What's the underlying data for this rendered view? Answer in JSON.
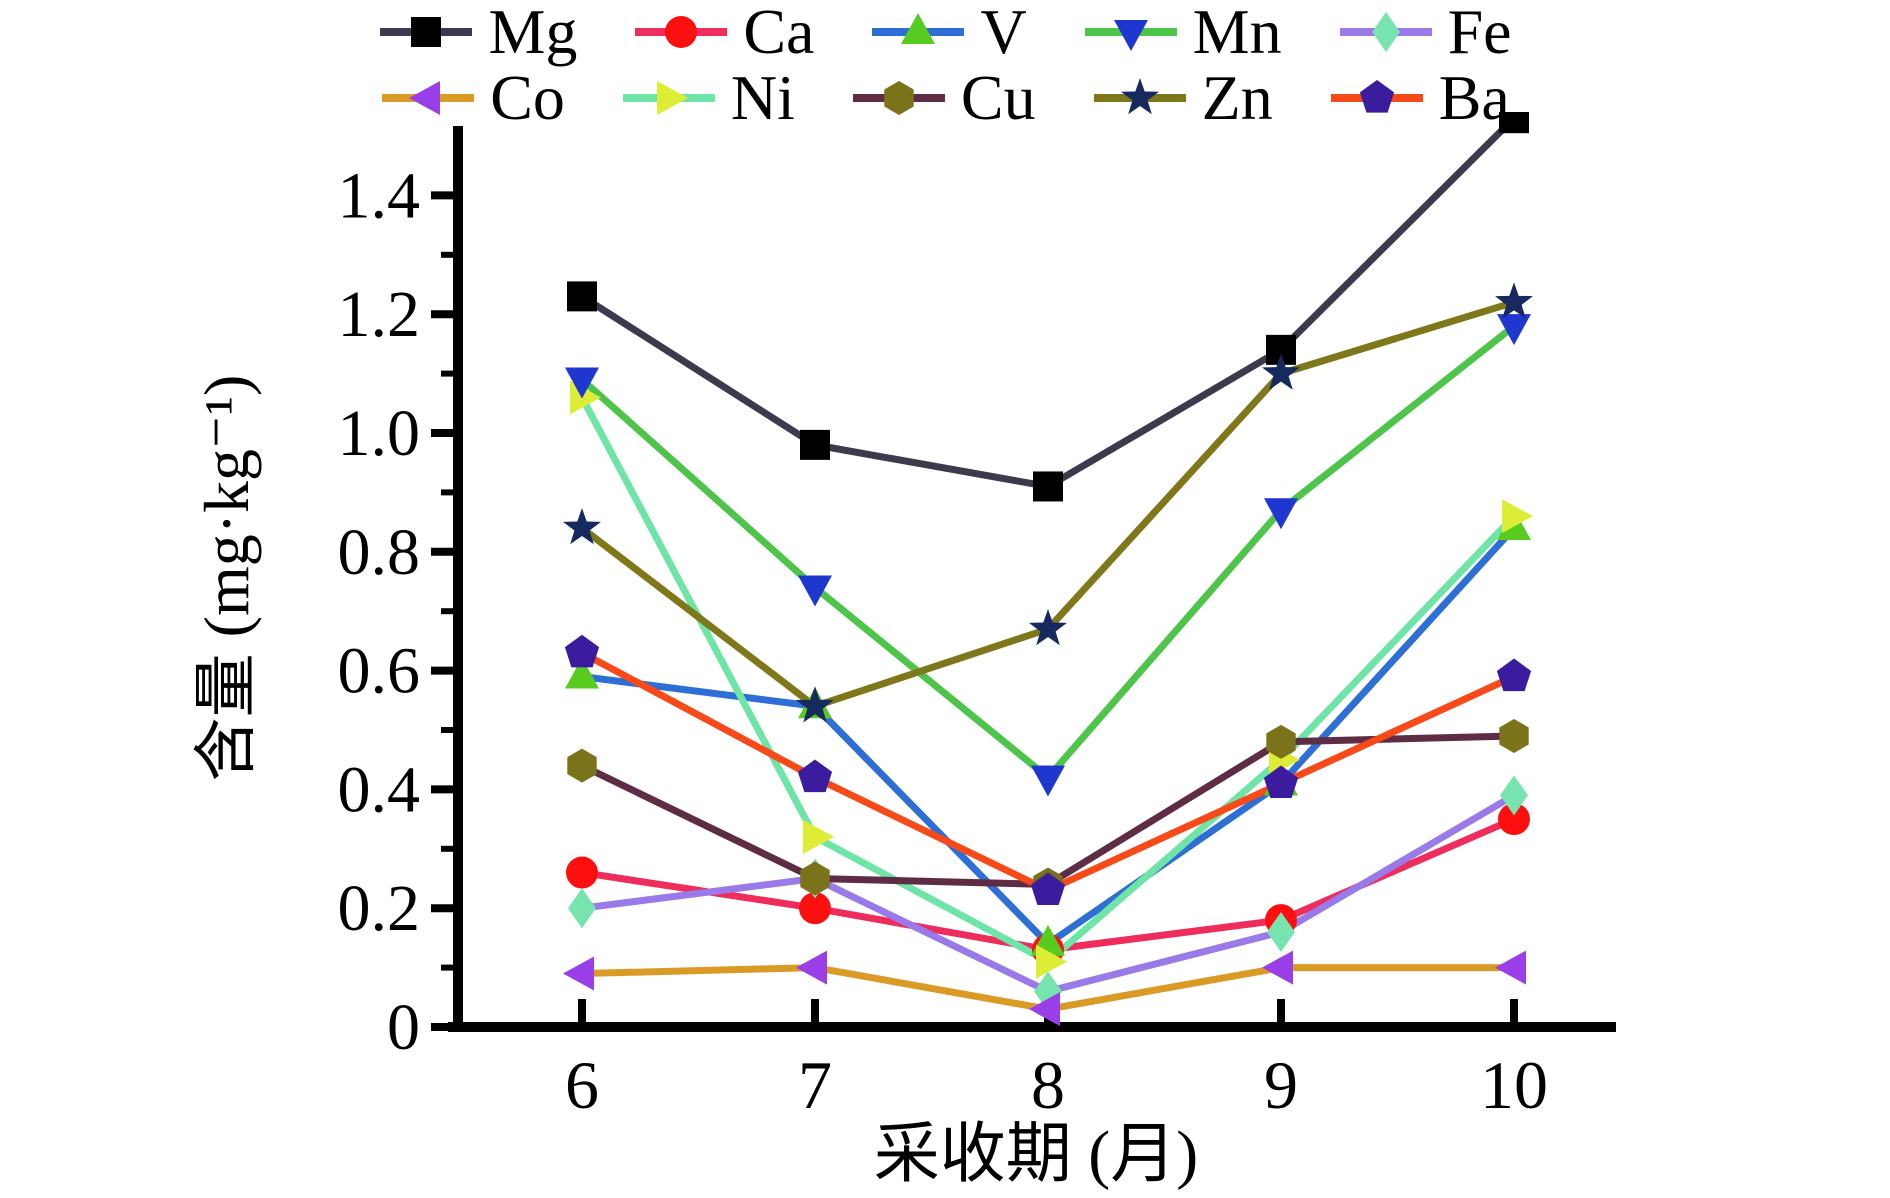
{
  "chart_data": {
    "type": "line",
    "x": [
      6,
      7,
      8,
      9,
      10
    ],
    "xlabel": "采收期 (月)",
    "ylabel": "含量 (mg·kg⁻¹)",
    "xlim": [
      5.5,
      10.45
    ],
    "ylim": [
      0,
      1.5
    ],
    "grid": false,
    "legend_position": "top-center-two-rows",
    "y_minor_tick_step": 0.1,
    "series": [
      {
        "name": "Mg",
        "line_color": "#3b3b4d",
        "marker": "square",
        "marker_color": "#000000",
        "values": [
          1.23,
          0.98,
          0.91,
          1.14,
          1.53
        ]
      },
      {
        "name": "Ca",
        "line_color": "#ee2d5d",
        "marker": "circle",
        "marker_color": "#fb0f0f",
        "values": [
          0.26,
          0.2,
          0.13,
          0.18,
          0.35
        ]
      },
      {
        "name": "V",
        "line_color": "#2e6fd6",
        "marker": "triangle-up",
        "marker_color": "#57cb20",
        "values": [
          0.59,
          0.54,
          0.14,
          0.41,
          0.84
        ]
      },
      {
        "name": "Mn",
        "line_color": "#4ec44a",
        "marker": "triangle-down",
        "marker_color": "#2037cf",
        "values": [
          1.09,
          0.74,
          0.42,
          0.87,
          1.18
        ]
      },
      {
        "name": "Fe",
        "line_color": "#9a7ae8",
        "marker": "diamond",
        "marker_color": "#77e3ae",
        "values": [
          0.2,
          0.25,
          0.06,
          0.16,
          0.39
        ]
      },
      {
        "name": "Co",
        "line_color": "#d99b26",
        "marker": "triangle-left",
        "marker_color": "#9a3fe8",
        "values": [
          0.09,
          0.1,
          0.03,
          0.1,
          0.1
        ]
      },
      {
        "name": "Ni",
        "line_color": "#6ee4a6",
        "marker": "triangle-right",
        "marker_color": "#dded35",
        "values": [
          1.06,
          0.32,
          0.11,
          0.45,
          0.86
        ]
      },
      {
        "name": "Cu",
        "line_color": "#5e2c44",
        "marker": "hexagon",
        "marker_color": "#7b731a",
        "values": [
          0.44,
          0.25,
          0.24,
          0.48,
          0.49
        ]
      },
      {
        "name": "Zn",
        "line_color": "#7e781b",
        "marker": "star",
        "marker_color": "#162a60",
        "values": [
          0.84,
          0.54,
          0.67,
          1.1,
          1.22
        ]
      },
      {
        "name": "Ba",
        "line_color": "#f84a19",
        "marker": "pentagon",
        "marker_color": "#3b1c9e",
        "values": [
          0.63,
          0.42,
          0.23,
          0.41,
          0.59
        ]
      }
    ],
    "note": "Mg line at month 10 rises above the visible axis maximum (clipped at plot top)."
  },
  "axis_tick_labels": {
    "x": [
      "6",
      "7",
      "8",
      "9",
      "10"
    ],
    "y": [
      "0",
      "0.2",
      "0.4",
      "0.6",
      "0.8",
      "1.0",
      "1.2",
      "1.4"
    ]
  },
  "colors": {
    "background": "#ffffff",
    "axis": "#000000",
    "text": "#000000"
  }
}
